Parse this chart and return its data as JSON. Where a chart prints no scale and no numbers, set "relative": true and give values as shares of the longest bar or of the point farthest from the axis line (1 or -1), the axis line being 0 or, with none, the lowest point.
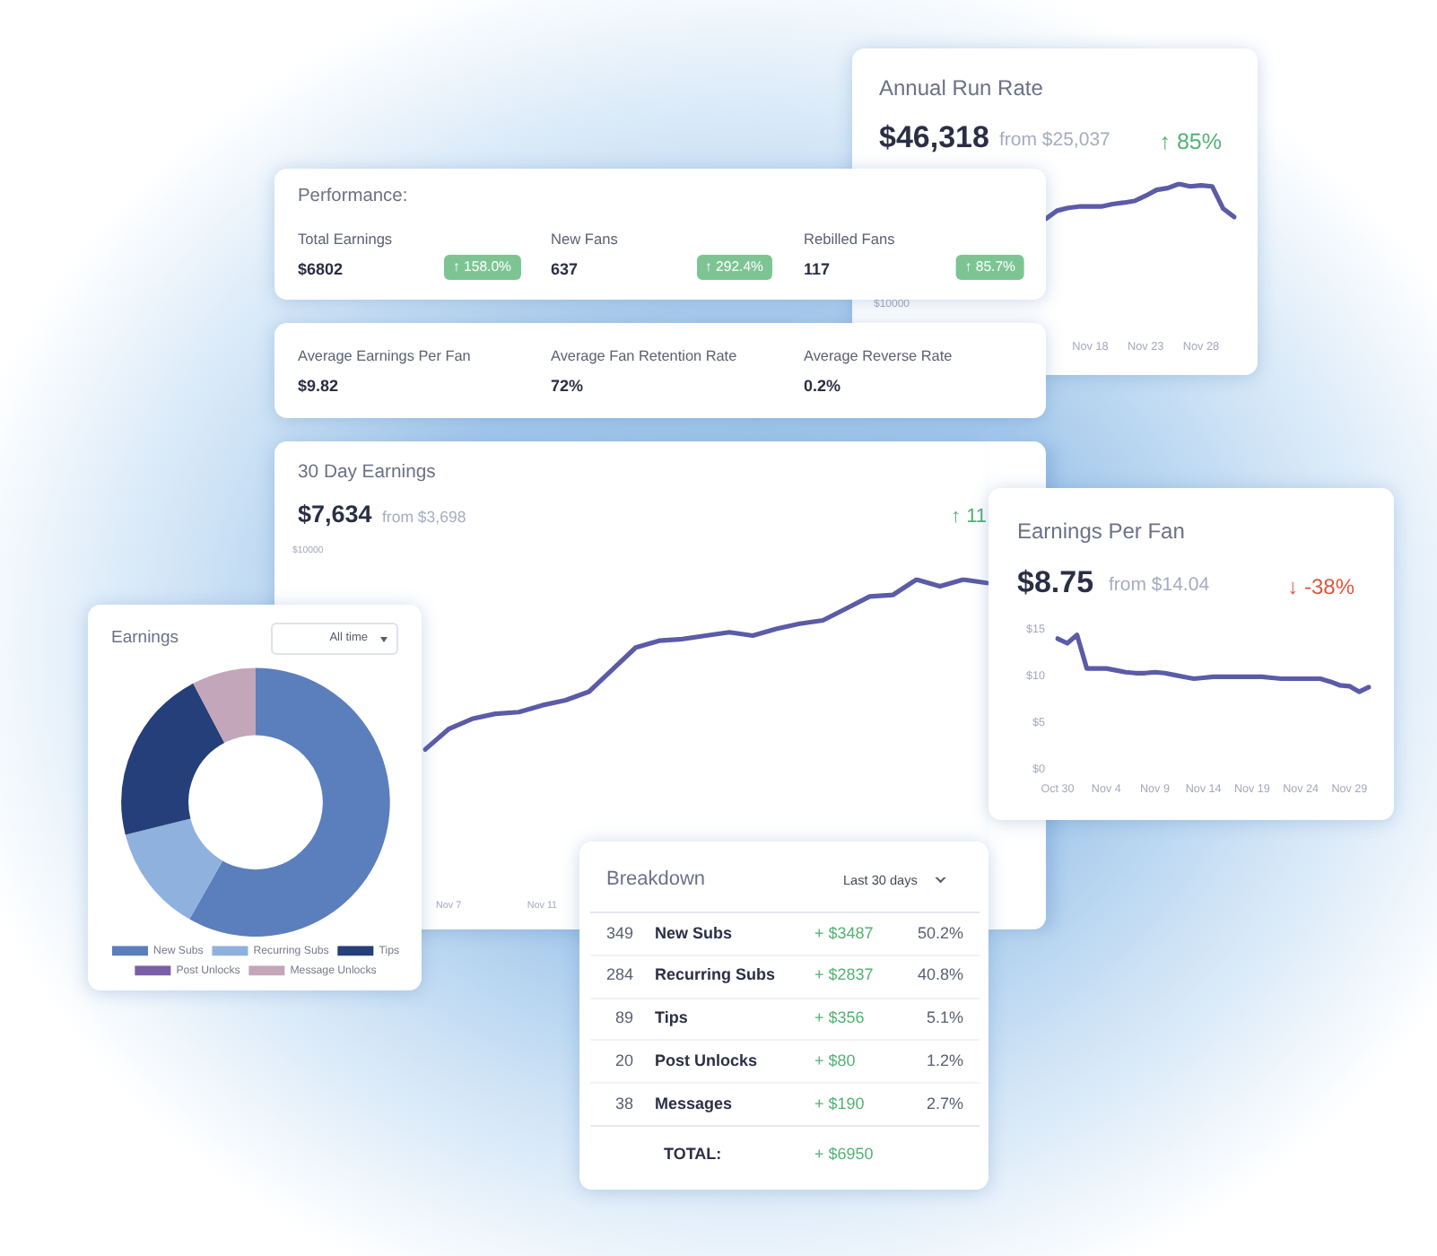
{
  "chart_data": [
    {
      "type": "line",
      "title": "Annual Run Rate",
      "subtitle": "$46,318",
      "annotations": [
        "from $25,037",
        "↑ 85%",
        "$10000"
      ],
      "categories": [
        null,
        null,
        null,
        null,
        "Nov 18",
        null,
        null,
        null,
        null,
        "Nov 23",
        null,
        null,
        null,
        null,
        "Nov 28",
        null,
        null,
        null
      ],
      "relative": true,
      "color": "#5b5ba8",
      "values": [
        0,
        0.23,
        0.31,
        0.35,
        0.35,
        0.35,
        0.42,
        0.46,
        0.51,
        0.66,
        0.83,
        0.88,
        1,
        0.93,
        0.96,
        0.93,
        0.29,
        0.05
      ]
    },
    {
      "type": "other",
      "title": "Performance:",
      "annotations": [
        "Total Earnings",
        "$6802",
        "↑ 158.0%",
        "New Fans",
        "637",
        "↑ 292.4%",
        "Rebilled Fans",
        "117",
        "↑ 85.7%"
      ]
    },
    {
      "type": "other",
      "annotations": [
        "Average Earnings Per Fan",
        "$9.82",
        "Average Fan Retention Rate",
        "72%",
        "Average Reverse Rate",
        "0.2%"
      ]
    },
    {
      "type": "line",
      "title": "30 Day Earnings",
      "subtitle": "$7,634",
      "annotations": [
        "from $3,698",
        "↑ 11",
        "$10000"
      ],
      "categories": [
        null,
        "Nov 7",
        null,
        null,
        null,
        "Nov 11",
        null,
        null,
        null,
        null,
        null,
        null,
        null,
        null,
        null,
        null,
        null,
        null,
        null,
        null,
        null,
        null,
        null,
        null,
        null
      ],
      "relative": true,
      "color": "#5b5ba8",
      "values": [
        0,
        0.12,
        0.18,
        0.21,
        0.22,
        0.26,
        0.29,
        0.34,
        0.47,
        0.6,
        0.64,
        0.65,
        0.67,
        0.69,
        0.67,
        0.71,
        0.74,
        0.76,
        0.83,
        0.9,
        0.91,
        1,
        0.96,
        1,
        0.98
      ]
    },
    {
      "type": "line",
      "title": "Earnings Per Fan",
      "subtitle": "$8.75",
      "annotations": [
        "from $14.04",
        "↓ -38%"
      ],
      "categories": [
        "Oct 30",
        null,
        null,
        null,
        null,
        "Nov 4",
        null,
        null,
        null,
        null,
        "Nov 9",
        null,
        null,
        null,
        null,
        "Nov 14",
        null,
        null,
        null,
        null,
        "Nov 19",
        null,
        null,
        null,
        null,
        "Nov 24",
        null,
        null,
        null,
        null,
        "Nov 29",
        null,
        null
      ],
      "color": "#5b5ba8",
      "values": [
        14.0,
        13.5,
        14.4,
        10.8,
        10.8,
        10.8,
        10.6,
        10.4,
        10.3,
        10.3,
        10.4,
        10.3,
        10.1,
        9.9,
        9.7,
        9.8,
        9.9,
        9.9,
        9.9,
        9.9,
        9.9,
        9.9,
        9.8,
        9.7,
        9.7,
        9.7,
        9.7,
        9.7,
        9.4,
        9.0,
        8.9,
        8.3,
        8.8
      ],
      "ylim": [
        0,
        15
      ],
      "yticks": [
        {
          "value": 0,
          "label": "$0"
        },
        {
          "value": 5,
          "label": "$5"
        },
        {
          "value": 10,
          "label": "$10"
        },
        {
          "value": 15,
          "label": "$15"
        }
      ]
    },
    {
      "type": "donut",
      "title": "Earnings",
      "annotations": [
        "All time"
      ],
      "categories": [
        "New Subs",
        "Recurring Subs",
        "Tips",
        "Post Unlocks",
        "Message Unlocks"
      ],
      "values": [
        58.2,
        12.9,
        21.2,
        0,
        7.7
      ],
      "colors": [
        "#5b7ebd",
        "#8fb1de",
        "#253f7a",
        "#7b5ea7",
        "#c3a6b9"
      ],
      "legend": "bottom"
    },
    {
      "type": "other",
      "title": "Breakdown",
      "annotations": [
        "Last 30 days",
        "349",
        "New Subs",
        "+ $3487",
        "50.2%",
        "284",
        "Recurring Subs",
        "+ $2837",
        "40.8%",
        "89",
        "Tips",
        "+ $356",
        "5.1%",
        "20",
        "Post Unlocks",
        "+ $80",
        "1.2%",
        "38",
        "Messages",
        "+ $190",
        "2.7%",
        "TOTAL:",
        "+ $6950"
      ]
    }
  ]
}
